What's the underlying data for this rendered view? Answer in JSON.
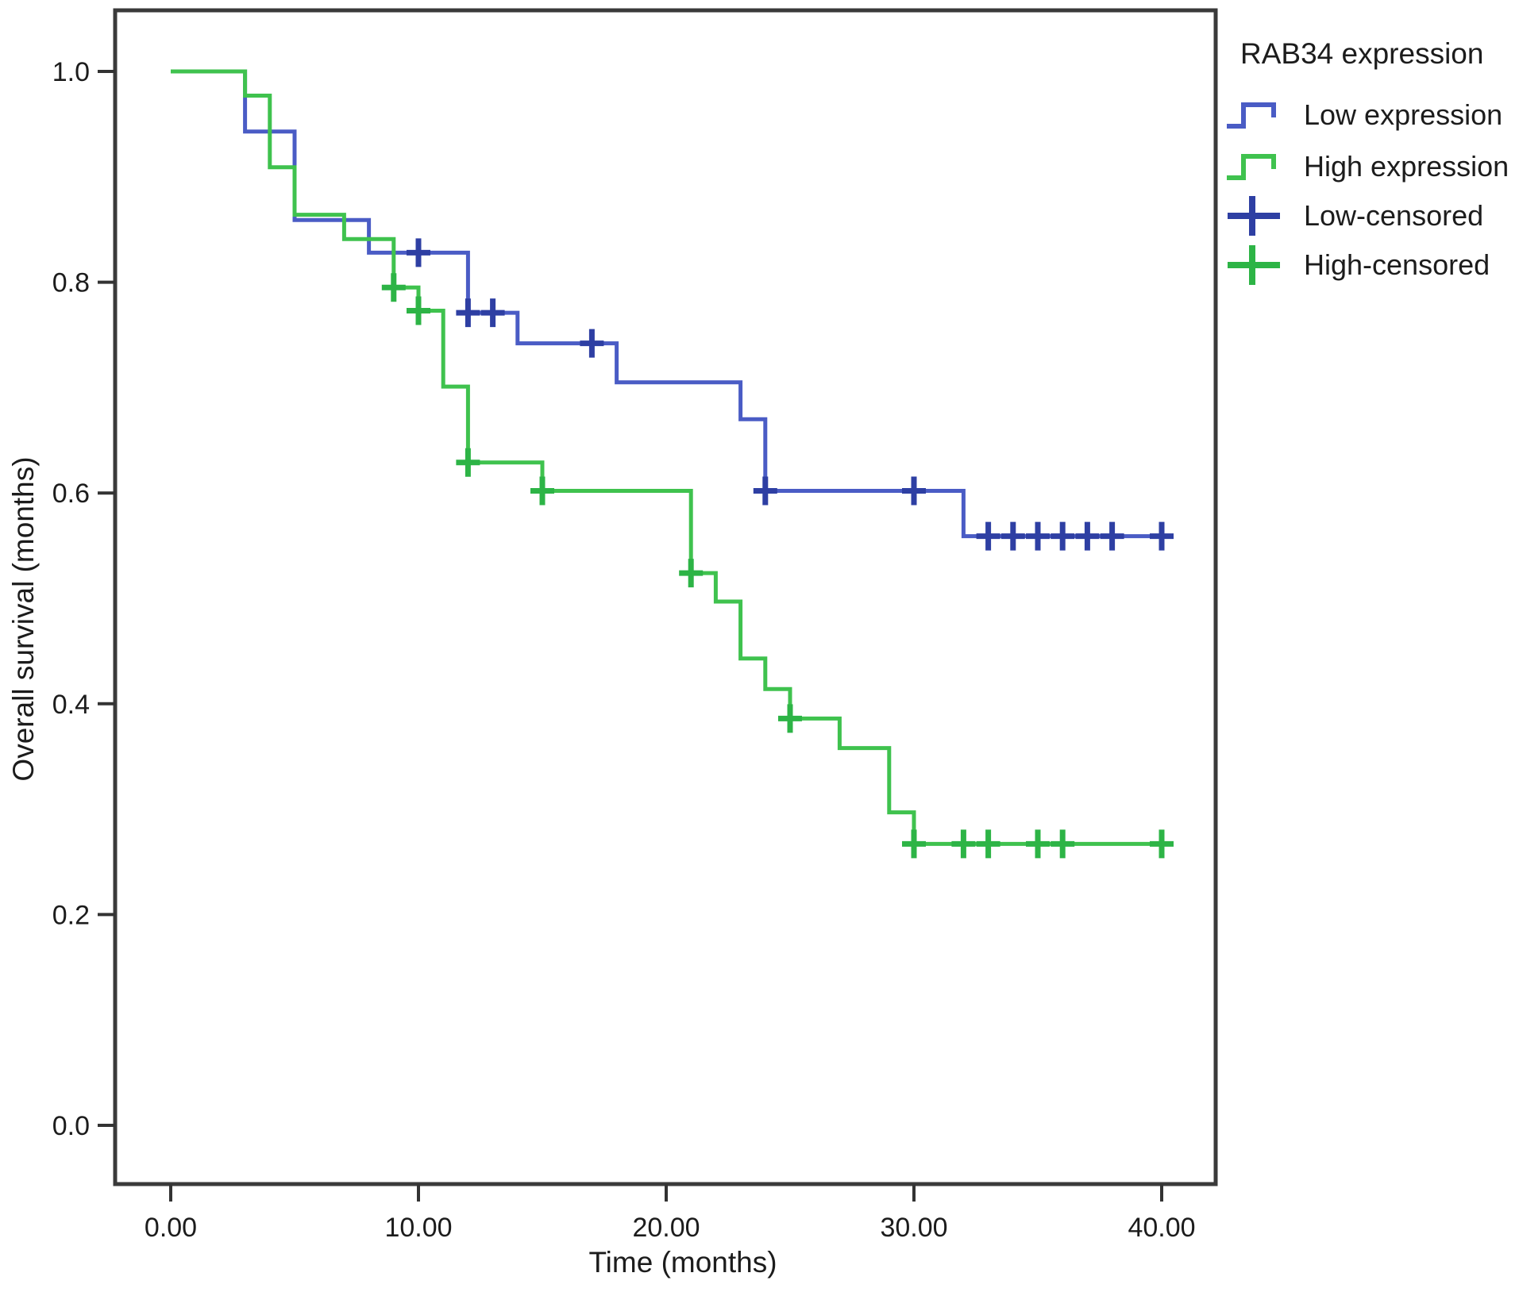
{
  "figure": {
    "background": "#ffffff",
    "frame_color": "#3a3a3a",
    "text_color": "#1c1c1c"
  },
  "axes": {
    "x_label": "Time (months)",
    "y_label": "Overall survival (months)",
    "x_tick_labels": [
      "0.00",
      "10.00",
      "20.00",
      "30.00",
      "40.00"
    ],
    "x_tick_values": [
      0,
      10,
      20,
      30,
      40
    ],
    "y_tick_labels": [
      "0.0",
      "0.2",
      "0.4",
      "0.6",
      "0.8",
      "1.0"
    ],
    "y_tick_values": [
      0,
      0.2,
      0.4,
      0.6,
      0.8,
      1.0
    ]
  },
  "legend": {
    "title": "RAB34 expression",
    "position": "top-right",
    "entries": [
      {
        "label": "Low expression",
        "type": "line",
        "color": "#4a5cc5"
      },
      {
        "label": "High expression",
        "type": "line",
        "color": "#3fc24e"
      },
      {
        "label": "Low-censored",
        "type": "cross",
        "color": "#2e3fa3"
      },
      {
        "label": "High-censored",
        "type": "cross",
        "color": "#2db446"
      }
    ]
  },
  "chart_data": {
    "type": "line",
    "subtype": "kaplan-meier-step",
    "title": "",
    "xlabel": "Time (months)",
    "ylabel": "Overall survival (months)",
    "xlim": [
      -2.2,
      42.2
    ],
    "ylim": [
      -0.06,
      1.06
    ],
    "grid": false,
    "legend_title": "RAB34 expression",
    "legend_position": "top-right",
    "x_ticks": [
      0,
      10,
      20,
      30,
      40
    ],
    "y_ticks": [
      0,
      0.2,
      0.4,
      0.6,
      0.8,
      1.0
    ],
    "series": [
      {
        "name": "Low expression",
        "color": "#4a5cc5",
        "censor_color": "#2e3fa3",
        "steps": [
          [
            0,
            1.0
          ],
          [
            3,
            0.943
          ],
          [
            5,
            0.859
          ],
          [
            8,
            0.828
          ],
          [
            12,
            0.771
          ],
          [
            14,
            0.742
          ],
          [
            18,
            0.705
          ],
          [
            23,
            0.67
          ],
          [
            24,
            0.602
          ],
          [
            32,
            0.559
          ]
        ],
        "end_time": 40.4,
        "censored": [
          [
            10,
            0.828
          ],
          [
            12,
            0.771
          ],
          [
            13,
            0.771
          ],
          [
            17,
            0.742
          ],
          [
            24,
            0.602
          ],
          [
            30,
            0.602
          ],
          [
            33,
            0.559
          ],
          [
            34,
            0.559
          ],
          [
            35,
            0.559
          ],
          [
            36,
            0.559
          ],
          [
            37,
            0.559
          ],
          [
            38,
            0.559
          ],
          [
            40,
            0.559
          ]
        ]
      },
      {
        "name": "High expression",
        "color": "#3fc24e",
        "censor_color": "#2db446",
        "steps": [
          [
            0,
            1.0
          ],
          [
            3,
            0.977
          ],
          [
            4,
            0.909
          ],
          [
            5,
            0.864
          ],
          [
            7,
            0.841
          ],
          [
            9,
            0.795
          ],
          [
            10,
            0.773
          ],
          [
            11,
            0.701
          ],
          [
            12,
            0.629
          ],
          [
            15,
            0.602
          ],
          [
            21,
            0.524
          ],
          [
            22,
            0.497
          ],
          [
            23,
            0.443
          ],
          [
            24,
            0.414
          ],
          [
            25,
            0.386
          ],
          [
            27,
            0.358
          ],
          [
            29,
            0.297
          ],
          [
            30,
            0.267
          ]
        ],
        "end_time": 40.3,
        "censored": [
          [
            9,
            0.795
          ],
          [
            10,
            0.773
          ],
          [
            12,
            0.629
          ],
          [
            15,
            0.602
          ],
          [
            21,
            0.524
          ],
          [
            25,
            0.386
          ],
          [
            30,
            0.267
          ],
          [
            32,
            0.267
          ],
          [
            33,
            0.267
          ],
          [
            35,
            0.267
          ],
          [
            36,
            0.267
          ],
          [
            40,
            0.267
          ]
        ]
      }
    ]
  }
}
